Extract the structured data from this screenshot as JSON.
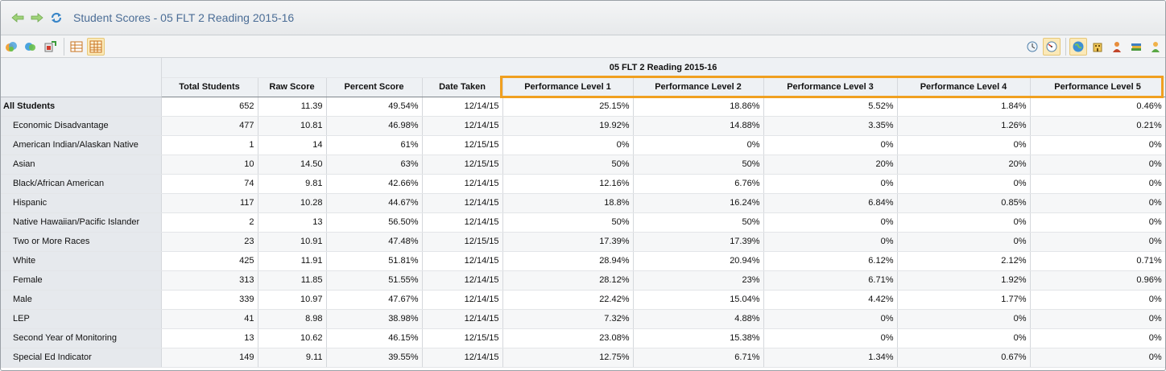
{
  "window": {
    "title": "Student Scores - 05 FLT 2 Reading 2015-16"
  },
  "icons": {
    "back": "back-arrow-icon",
    "forward": "forward-arrow-icon",
    "refresh": "refresh-icon"
  },
  "table": {
    "group_header": "05 FLT 2 Reading 2015-16",
    "columns": [
      "Total Students",
      "Raw Score",
      "Percent Score",
      "Date Taken",
      "Performance Level 1",
      "Performance Level 2",
      "Performance Level 3",
      "Performance Level 4",
      "Performance Level 5"
    ],
    "rows": [
      {
        "label": "All Students",
        "values": [
          "652",
          "11.39",
          "49.54%",
          "12/14/15",
          "25.15%",
          "18.86%",
          "5.52%",
          "1.84%",
          "0.46%"
        ]
      },
      {
        "label": "Economic Disadvantage",
        "values": [
          "477",
          "10.81",
          "46.98%",
          "12/14/15",
          "19.92%",
          "14.88%",
          "3.35%",
          "1.26%",
          "0.21%"
        ]
      },
      {
        "label": "American Indian/Alaskan Native",
        "values": [
          "1",
          "14",
          "61%",
          "12/15/15",
          "0%",
          "0%",
          "0%",
          "0%",
          "0%"
        ]
      },
      {
        "label": "Asian",
        "values": [
          "10",
          "14.50",
          "63%",
          "12/15/15",
          "50%",
          "50%",
          "20%",
          "20%",
          "0%"
        ]
      },
      {
        "label": "Black/African American",
        "values": [
          "74",
          "9.81",
          "42.66%",
          "12/14/15",
          "12.16%",
          "6.76%",
          "0%",
          "0%",
          "0%"
        ]
      },
      {
        "label": "Hispanic",
        "values": [
          "117",
          "10.28",
          "44.67%",
          "12/14/15",
          "18.8%",
          "16.24%",
          "6.84%",
          "0.85%",
          "0%"
        ]
      },
      {
        "label": "Native Hawaiian/Pacific Islander",
        "values": [
          "2",
          "13",
          "56.50%",
          "12/14/15",
          "50%",
          "50%",
          "0%",
          "0%",
          "0%"
        ]
      },
      {
        "label": "Two or More Races",
        "values": [
          "23",
          "10.91",
          "47.48%",
          "12/15/15",
          "17.39%",
          "17.39%",
          "0%",
          "0%",
          "0%"
        ]
      },
      {
        "label": "White",
        "values": [
          "425",
          "11.91",
          "51.81%",
          "12/14/15",
          "28.94%",
          "20.94%",
          "6.12%",
          "2.12%",
          "0.71%"
        ]
      },
      {
        "label": "Female",
        "values": [
          "313",
          "11.85",
          "51.55%",
          "12/14/15",
          "28.12%",
          "23%",
          "6.71%",
          "1.92%",
          "0.96%"
        ]
      },
      {
        "label": "Male",
        "values": [
          "339",
          "10.97",
          "47.67%",
          "12/14/15",
          "22.42%",
          "15.04%",
          "4.42%",
          "1.77%",
          "0%"
        ]
      },
      {
        "label": "LEP",
        "values": [
          "41",
          "8.98",
          "38.98%",
          "12/14/15",
          "7.32%",
          "4.88%",
          "0%",
          "0%",
          "0%"
        ]
      },
      {
        "label": "Second Year of Monitoring",
        "values": [
          "13",
          "10.62",
          "46.15%",
          "12/15/15",
          "23.08%",
          "15.38%",
          "0%",
          "0%",
          "0%"
        ]
      },
      {
        "label": "Special Ed Indicator",
        "values": [
          "149",
          "9.11",
          "39.55%",
          "12/14/15",
          "12.75%",
          "6.71%",
          "1.34%",
          "0.67%",
          "0%"
        ]
      }
    ]
  },
  "colors": {
    "highlight": "#f0a020",
    "title": "#4b6d96"
  }
}
